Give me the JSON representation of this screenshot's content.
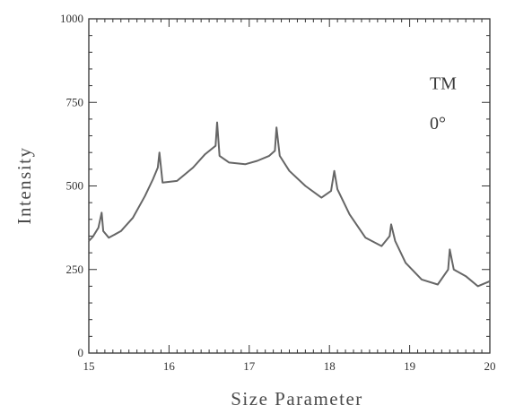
{
  "chart_data": {
    "type": "line",
    "title": "",
    "xlabel": "Size Parameter",
    "ylabel": "Intensity",
    "xlim": [
      15,
      20
    ],
    "ylim": [
      0,
      1000
    ],
    "x_ticks": [
      15,
      16,
      17,
      18,
      19,
      20
    ],
    "x_tick_labels": [
      "15",
      "16",
      "17",
      "18",
      "19",
      "20"
    ],
    "y_ticks": [
      0,
      250,
      500,
      750,
      1000
    ],
    "y_tick_labels": [
      "0",
      "250",
      "500",
      "750",
      "1000"
    ],
    "grid": false,
    "line_color": "#666666",
    "annotations": [
      {
        "text": "TM",
        "x": 19.25,
        "y": 790
      },
      {
        "text": "0°",
        "x": 19.25,
        "y": 670
      }
    ],
    "series": [
      {
        "x": [
          15.0,
          15.05,
          15.12,
          15.16,
          15.18,
          15.25,
          15.4,
          15.55,
          15.7,
          15.8,
          15.86,
          15.88,
          15.92,
          16.1,
          16.3,
          16.45,
          16.58,
          16.6,
          16.63,
          16.75,
          16.95,
          17.1,
          17.25,
          17.32,
          17.34,
          17.38,
          17.5,
          17.7,
          17.9,
          18.02,
          18.06,
          18.1,
          18.25,
          18.45,
          18.65,
          18.75,
          18.77,
          18.82,
          18.95,
          19.15,
          19.35,
          19.48,
          19.5,
          19.55,
          19.7,
          19.85,
          20.0
        ],
        "y": [
          335,
          348,
          375,
          420,
          365,
          345,
          365,
          405,
          470,
          520,
          555,
          600,
          510,
          515,
          555,
          595,
          620,
          690,
          590,
          570,
          565,
          575,
          590,
          605,
          675,
          590,
          545,
          500,
          465,
          485,
          545,
          490,
          415,
          345,
          320,
          350,
          385,
          335,
          270,
          220,
          205,
          250,
          310,
          250,
          230,
          200,
          215
        ]
      }
    ]
  }
}
